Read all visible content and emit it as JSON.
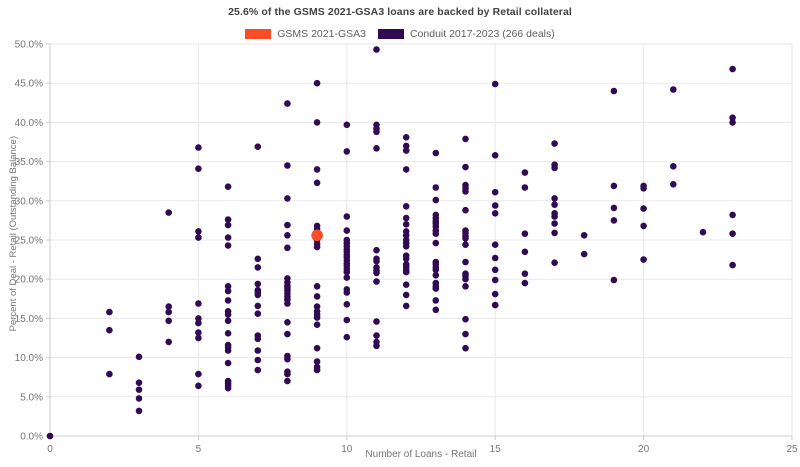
{
  "header": {
    "title": "25.6% of the GSMS 2021-GSA3 loans are backed by Retail collateral"
  },
  "legend": {
    "items": [
      {
        "label": "GSMS 2021-GSA3",
        "color": "#f94d27"
      },
      {
        "label": "Conduit 2017-2023 (266 deals)",
        "color": "#310a54"
      }
    ]
  },
  "chart_data": {
    "type": "scatter",
    "title": "25.6% of the GSMS 2021-GSA3 loans are backed by Retail collateral",
    "xlabel": "Number of Loans - Retail",
    "ylabel": "Percent of Deal - Retail (Outstanding Balance)",
    "xlim": [
      0,
      25
    ],
    "ylim": [
      0,
      50
    ],
    "xticks": [
      0,
      5,
      10,
      15,
      20,
      25
    ],
    "xtick_labels": [
      "0",
      "5",
      "10",
      "15",
      "20",
      "25"
    ],
    "yticks": [
      0,
      5,
      10,
      15,
      20,
      25,
      30,
      35,
      40,
      45,
      50
    ],
    "ytick_labels": [
      "0.0%",
      "5.0%",
      "10.0%",
      "15.0%",
      "20.0%",
      "25.0%",
      "30.0%",
      "35.0%",
      "40.0%",
      "45.0%",
      "50.0%"
    ],
    "grid": true,
    "grid_color": "#e8e8e8",
    "axis_color": "#cccccc",
    "legend_position": "top-center",
    "series": [
      {
        "name": "Conduit 2017-2023 (266 deals)",
        "color": "#310a54",
        "marker_radius": 3.3,
        "points": [
          [
            0,
            0.0
          ],
          [
            2,
            15.8
          ],
          [
            2,
            13.5
          ],
          [
            2,
            7.9
          ],
          [
            3,
            10.1
          ],
          [
            3,
            6.8
          ],
          [
            3,
            5.9
          ],
          [
            3,
            4.8
          ],
          [
            3,
            3.2
          ],
          [
            4,
            28.5
          ],
          [
            4,
            16.5
          ],
          [
            4,
            15.8
          ],
          [
            4,
            14.7
          ],
          [
            4,
            12.0
          ],
          [
            5,
            36.8
          ],
          [
            5,
            34.1
          ],
          [
            5,
            26.1
          ],
          [
            5,
            25.3
          ],
          [
            5,
            16.9
          ],
          [
            5,
            15.0
          ],
          [
            5,
            14.4
          ],
          [
            5,
            13.2
          ],
          [
            5,
            12.5
          ],
          [
            5,
            7.9
          ],
          [
            5,
            6.4
          ],
          [
            6,
            31.8
          ],
          [
            6,
            27.6
          ],
          [
            6,
            26.9
          ],
          [
            6,
            25.3
          ],
          [
            6,
            24.3
          ],
          [
            6,
            19.1
          ],
          [
            6,
            18.5
          ],
          [
            6,
            17.3
          ],
          [
            6,
            15.9
          ],
          [
            6,
            15.5
          ],
          [
            6,
            14.7
          ],
          [
            6,
            13.1
          ],
          [
            6,
            11.6
          ],
          [
            6,
            11.3
          ],
          [
            6,
            10.9
          ],
          [
            6,
            9.3
          ],
          [
            6,
            7.0
          ],
          [
            6,
            6.7
          ],
          [
            6,
            6.4
          ],
          [
            6,
            6.1
          ],
          [
            7,
            36.9
          ],
          [
            7,
            22.6
          ],
          [
            7,
            21.5
          ],
          [
            7,
            19.4
          ],
          [
            7,
            18.6
          ],
          [
            7,
            18.3
          ],
          [
            7,
            18.0
          ],
          [
            7,
            16.6
          ],
          [
            7,
            15.6
          ],
          [
            7,
            12.8
          ],
          [
            7,
            12.4
          ],
          [
            7,
            10.9
          ],
          [
            7,
            9.7
          ],
          [
            7,
            8.4
          ],
          [
            8,
            42.4
          ],
          [
            8,
            34.5
          ],
          [
            8,
            30.3
          ],
          [
            8,
            26.9
          ],
          [
            8,
            25.6
          ],
          [
            8,
            24.0
          ],
          [
            8,
            20.1
          ],
          [
            8,
            19.6
          ],
          [
            8,
            19.2
          ],
          [
            8,
            18.9
          ],
          [
            8,
            18.6
          ],
          [
            8,
            18.2
          ],
          [
            8,
            17.8
          ],
          [
            8,
            17.4
          ],
          [
            8,
            16.9
          ],
          [
            8,
            14.5
          ],
          [
            8,
            13.0
          ],
          [
            8,
            10.2
          ],
          [
            8,
            9.8
          ],
          [
            8,
            8.2
          ],
          [
            8,
            7.9
          ],
          [
            8,
            7.0
          ],
          [
            9,
            45.0
          ],
          [
            9,
            40.0
          ],
          [
            9,
            34.0
          ],
          [
            9,
            32.3
          ],
          [
            9,
            26.8
          ],
          [
            9,
            26.4
          ],
          [
            9,
            25.0
          ],
          [
            9,
            24.5
          ],
          [
            9,
            24.1
          ],
          [
            9,
            19.1
          ],
          [
            9,
            17.8
          ],
          [
            9,
            16.5
          ],
          [
            9,
            15.9
          ],
          [
            9,
            15.5
          ],
          [
            9,
            15.1
          ],
          [
            9,
            14.2
          ],
          [
            9,
            11.2
          ],
          [
            9,
            9.5
          ],
          [
            9,
            8.8
          ],
          [
            9,
            8.4
          ],
          [
            10,
            39.7
          ],
          [
            10,
            36.3
          ],
          [
            10,
            28.0
          ],
          [
            10,
            26.2
          ],
          [
            10,
            25.0
          ],
          [
            10,
            24.6
          ],
          [
            10,
            24.2
          ],
          [
            10,
            23.8
          ],
          [
            10,
            23.5
          ],
          [
            10,
            23.1
          ],
          [
            10,
            22.8
          ],
          [
            10,
            22.4
          ],
          [
            10,
            22.0
          ],
          [
            10,
            21.7
          ],
          [
            10,
            21.3
          ],
          [
            10,
            20.9
          ],
          [
            10,
            20.2
          ],
          [
            10,
            18.7
          ],
          [
            10,
            18.3
          ],
          [
            10,
            16.8
          ],
          [
            10,
            14.8
          ],
          [
            10,
            12.6
          ],
          [
            11,
            49.3
          ],
          [
            11,
            39.7
          ],
          [
            11,
            39.2
          ],
          [
            11,
            38.8
          ],
          [
            11,
            36.7
          ],
          [
            11,
            23.7
          ],
          [
            11,
            22.6
          ],
          [
            11,
            22.3
          ],
          [
            11,
            21.5
          ],
          [
            11,
            21.1
          ],
          [
            11,
            20.8
          ],
          [
            11,
            19.7
          ],
          [
            11,
            14.6
          ],
          [
            11,
            12.8
          ],
          [
            11,
            12.0
          ],
          [
            11,
            11.5
          ],
          [
            12,
            38.1
          ],
          [
            12,
            37.0
          ],
          [
            12,
            36.4
          ],
          [
            12,
            34.0
          ],
          [
            12,
            29.3
          ],
          [
            12,
            27.8
          ],
          [
            12,
            27.0
          ],
          [
            12,
            26.1
          ],
          [
            12,
            25.6
          ],
          [
            12,
            25.0
          ],
          [
            12,
            24.6
          ],
          [
            12,
            24.2
          ],
          [
            12,
            23.0
          ],
          [
            12,
            22.6
          ],
          [
            12,
            21.9
          ],
          [
            12,
            21.6
          ],
          [
            12,
            21.2
          ],
          [
            12,
            20.9
          ],
          [
            12,
            19.3
          ],
          [
            12,
            18.0
          ],
          [
            12,
            16.6
          ],
          [
            13,
            36.1
          ],
          [
            13,
            31.7
          ],
          [
            13,
            30.1
          ],
          [
            13,
            28.2
          ],
          [
            13,
            27.8
          ],
          [
            13,
            27.4
          ],
          [
            13,
            27.1
          ],
          [
            13,
            26.7
          ],
          [
            13,
            26.2
          ],
          [
            13,
            25.8
          ],
          [
            13,
            24.6
          ],
          [
            13,
            22.2
          ],
          [
            13,
            21.9
          ],
          [
            13,
            21.5
          ],
          [
            13,
            21.2
          ],
          [
            13,
            20.5
          ],
          [
            13,
            19.5
          ],
          [
            13,
            19.1
          ],
          [
            13,
            18.8
          ],
          [
            13,
            17.3
          ],
          [
            13,
            16.1
          ],
          [
            14,
            37.9
          ],
          [
            14,
            34.3
          ],
          [
            14,
            32.0
          ],
          [
            14,
            31.6
          ],
          [
            14,
            31.2
          ],
          [
            14,
            28.8
          ],
          [
            14,
            26.2
          ],
          [
            14,
            25.9
          ],
          [
            14,
            25.5
          ],
          [
            14,
            25.2
          ],
          [
            14,
            24.4
          ],
          [
            14,
            22.2
          ],
          [
            14,
            20.7
          ],
          [
            14,
            20.4
          ],
          [
            14,
            20.0
          ],
          [
            14,
            19.1
          ],
          [
            14,
            14.9
          ],
          [
            14,
            13.0
          ],
          [
            14,
            11.2
          ],
          [
            15,
            44.9
          ],
          [
            15,
            35.8
          ],
          [
            15,
            31.1
          ],
          [
            15,
            29.4
          ],
          [
            15,
            28.4
          ],
          [
            15,
            24.4
          ],
          [
            15,
            22.7
          ],
          [
            15,
            21.2
          ],
          [
            15,
            19.9
          ],
          [
            15,
            18.1
          ],
          [
            15,
            16.7
          ],
          [
            16,
            33.6
          ],
          [
            16,
            31.7
          ],
          [
            16,
            25.8
          ],
          [
            16,
            23.5
          ],
          [
            16,
            20.7
          ],
          [
            16,
            19.5
          ],
          [
            17,
            37.3
          ],
          [
            17,
            34.6
          ],
          [
            17,
            34.2
          ],
          [
            17,
            30.3
          ],
          [
            17,
            29.5
          ],
          [
            17,
            28.4
          ],
          [
            17,
            28.0
          ],
          [
            17,
            27.1
          ],
          [
            17,
            25.9
          ],
          [
            17,
            22.1
          ],
          [
            18,
            25.6
          ],
          [
            18,
            23.2
          ],
          [
            19,
            44.0
          ],
          [
            19,
            31.9
          ],
          [
            19,
            29.1
          ],
          [
            19,
            27.5
          ],
          [
            19,
            19.9
          ],
          [
            20,
            31.9
          ],
          [
            20,
            31.6
          ],
          [
            20,
            29.0
          ],
          [
            20,
            26.8
          ],
          [
            20,
            22.5
          ],
          [
            21,
            44.2
          ],
          [
            21,
            34.4
          ],
          [
            21,
            32.1
          ],
          [
            22,
            26.0
          ],
          [
            23,
            46.8
          ],
          [
            23,
            40.6
          ],
          [
            23,
            40.0
          ],
          [
            23,
            28.2
          ],
          [
            23,
            25.8
          ],
          [
            23,
            21.8
          ]
        ]
      },
      {
        "name": "GSMS 2021-GSA3",
        "color": "#f94d27",
        "marker_radius": 5.8,
        "points": [
          [
            9,
            25.6
          ]
        ]
      }
    ]
  }
}
